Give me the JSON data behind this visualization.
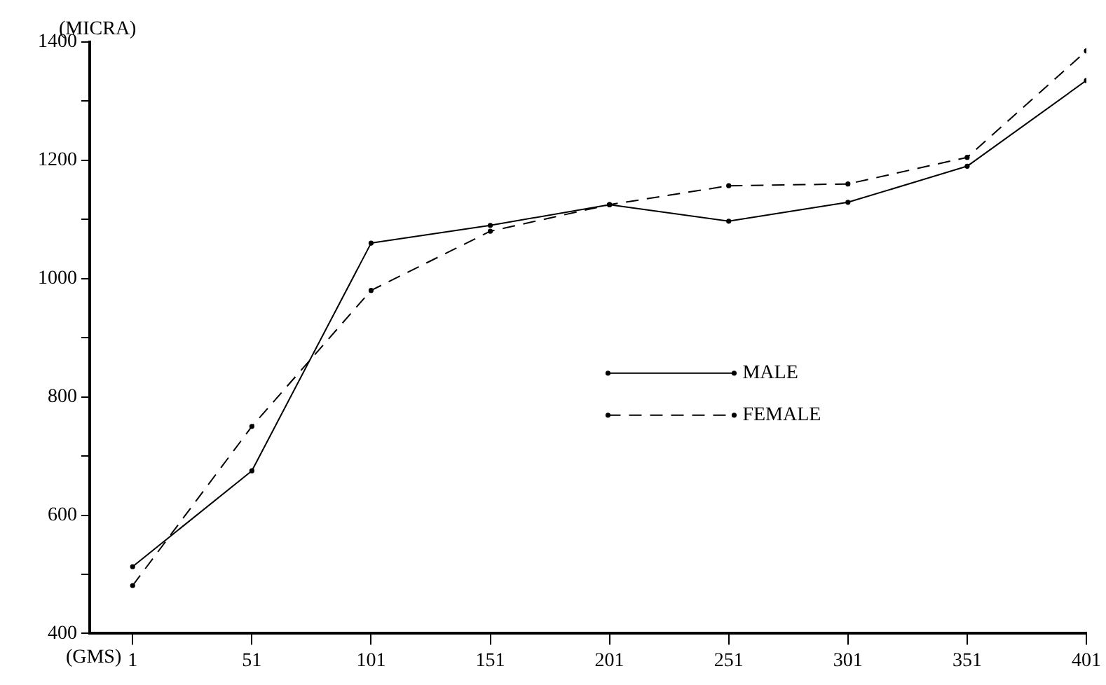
{
  "chart_data": {
    "type": "line",
    "xlabel": "(GMS)",
    "ylabel": "(MICRA)",
    "x": [
      1,
      51,
      101,
      151,
      201,
      251,
      301,
      351,
      401
    ],
    "series": [
      {
        "name": "MALE",
        "color": "#000000",
        "line_style": "solid",
        "values": [
          513,
          675,
          1060,
          1090,
          1125,
          1097,
          1129,
          1190,
          1335
        ]
      },
      {
        "name": "FEMALE",
        "color": "#000000",
        "line_style": "dashed",
        "values": [
          481,
          750,
          980,
          1080,
          1125,
          1157,
          1160,
          1205,
          1385
        ]
      }
    ],
    "xlim": [
      -17,
      401
    ],
    "xticks": [
      1,
      51,
      101,
      151,
      201,
      251,
      301,
      351,
      401
    ],
    "ylim": [
      400,
      1400
    ],
    "yticks": [
      400,
      {
        "value": 500,
        "label": null
      },
      600,
      {
        "value": 700,
        "label": null
      },
      800,
      {
        "value": 900,
        "label": null
      },
      1000,
      {
        "value": 1100,
        "label": null
      },
      1200,
      {
        "value": 1300,
        "label": null
      },
      1400
    ],
    "grid": false,
    "legend": "center",
    "marker": "circle"
  }
}
